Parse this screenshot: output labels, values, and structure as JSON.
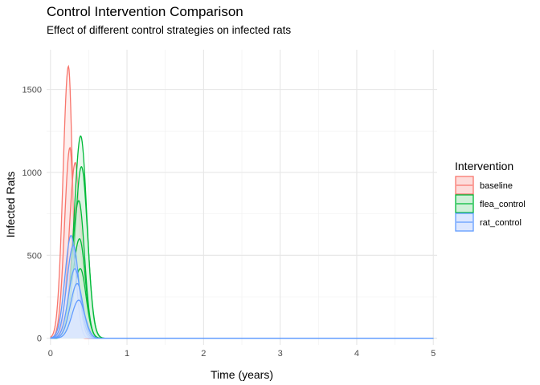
{
  "chart_data": {
    "type": "area",
    "title": "Control Intervention Comparison",
    "subtitle": "Effect of different control strategies on infected rats",
    "xlabel": "Time (years)",
    "ylabel": "Infected Rats",
    "xlim": [
      -0.05,
      5.05
    ],
    "ylim": [
      -40,
      1740
    ],
    "x_ticks": [
      0,
      1,
      2,
      3,
      4,
      5
    ],
    "x_tick_labels": [
      "0",
      "1",
      "2",
      "3",
      "4",
      "5"
    ],
    "y_ticks": [
      0,
      500,
      1000,
      1500
    ],
    "y_tick_labels": [
      "0",
      "500",
      "1000",
      "1500"
    ],
    "grid": true,
    "legend": {
      "title": "Intervention",
      "position": "right"
    },
    "series": [
      {
        "name": "baseline",
        "color": "#F8766D",
        "fill": "#FDDCDA",
        "peaks": [
          {
            "t": 0.235,
            "h": 1640,
            "sl": 0.07,
            "sr": 0.052
          },
          {
            "t": 0.255,
            "h": 1150,
            "sl": 0.07,
            "sr": 0.05
          },
          {
            "t": 0.325,
            "h": 1060,
            "sl": 0.08,
            "sr": 0.06
          },
          {
            "t": 0.36,
            "h": 830,
            "sl": 0.085,
            "sr": 0.065
          },
          {
            "t": 0.37,
            "h": 560,
            "sl": 0.09,
            "sr": 0.07
          }
        ]
      },
      {
        "name": "flea_control",
        "color": "#00BA38",
        "fill": "#CFF0D8",
        "peaks": [
          {
            "t": 0.395,
            "h": 1220,
            "sl": 0.085,
            "sr": 0.08
          },
          {
            "t": 0.405,
            "h": 1035,
            "sl": 0.085,
            "sr": 0.08
          },
          {
            "t": 0.37,
            "h": 830,
            "sl": 0.085,
            "sr": 0.075
          },
          {
            "t": 0.38,
            "h": 600,
            "sl": 0.09,
            "sr": 0.075
          },
          {
            "t": 0.39,
            "h": 420,
            "sl": 0.09,
            "sr": 0.075
          }
        ]
      },
      {
        "name": "rat_control",
        "color": "#619CFF",
        "fill": "#DCE7FF",
        "peaks": [
          {
            "t": 0.27,
            "h": 620,
            "sl": 0.08,
            "sr": 0.065
          },
          {
            "t": 0.3,
            "h": 560,
            "sl": 0.085,
            "sr": 0.07
          },
          {
            "t": 0.32,
            "h": 420,
            "sl": 0.085,
            "sr": 0.075
          },
          {
            "t": 0.35,
            "h": 330,
            "sl": 0.09,
            "sr": 0.075
          },
          {
            "t": 0.37,
            "h": 230,
            "sl": 0.09,
            "sr": 0.08
          }
        ]
      }
    ]
  }
}
